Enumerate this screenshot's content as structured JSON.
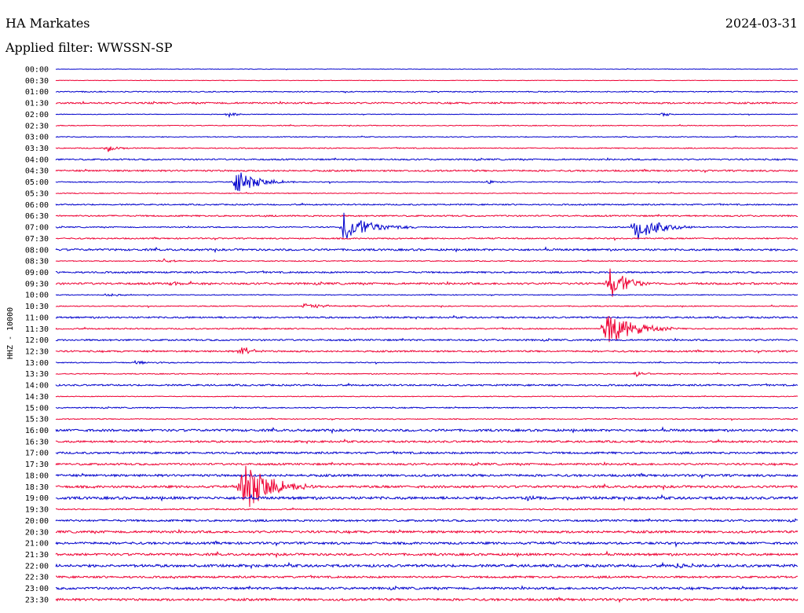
{
  "header": {
    "station": "HA Markates",
    "date": "2024-03-31",
    "filter": "Applied filter: WWSSN-SP"
  },
  "chart_data": {
    "type": "line",
    "ylabel": "HHZ - 10000",
    "row_labels": [
      "00:00",
      "00:30",
      "01:00",
      "01:30",
      "02:00",
      "02:30",
      "03:00",
      "03:30",
      "04:00",
      "04:30",
      "05:00",
      "05:30",
      "06:00",
      "06:30",
      "07:00",
      "07:30",
      "08:00",
      "08:30",
      "09:00",
      "09:30",
      "10:00",
      "10:30",
      "11:00",
      "11:30",
      "12:00",
      "12:30",
      "13:00",
      "13:30",
      "14:00",
      "14:30",
      "15:00",
      "15:30",
      "16:00",
      "16:30",
      "17:00",
      "17:30",
      "18:00",
      "18:30",
      "19:00",
      "19:30",
      "20:00",
      "20:30",
      "21:00",
      "21:30",
      "22:00",
      "22:30",
      "23:00",
      "23:30"
    ],
    "minutes_per_row": 30,
    "colors": [
      "#0000cc",
      "#ee0033"
    ],
    "noise_level": [
      0.3,
      0.3,
      0.6,
      1.0,
      0.4,
      0.5,
      0.5,
      0.6,
      0.9,
      1.0,
      0.6,
      0.5,
      0.8,
      0.9,
      0.7,
      0.8,
      1.2,
      0.6,
      1.0,
      1.2,
      0.5,
      0.6,
      1.0,
      0.8,
      1.0,
      1.0,
      0.6,
      0.6,
      1.0,
      0.5,
      0.7,
      0.6,
      1.4,
      1.2,
      1.2,
      1.2,
      1.4,
      1.4,
      1.6,
      0.8,
      1.2,
      1.4,
      1.4,
      1.4,
      1.6,
      1.2,
      1.4,
      1.4
    ],
    "events": [
      {
        "row": 4,
        "minute": 7.0,
        "amplitude": 4,
        "duration": 1.0
      },
      {
        "row": 4,
        "minute": 24.5,
        "amplitude": 3,
        "duration": 1.0
      },
      {
        "row": 7,
        "minute": 2.1,
        "amplitude": 5,
        "duration": 1.0
      },
      {
        "row": 10,
        "minute": 7.2,
        "amplitude": 17,
        "duration": 2.5
      },
      {
        "row": 10,
        "minute": 17.4,
        "amplitude": 3,
        "duration": 1.0
      },
      {
        "row": 14,
        "minute": 11.6,
        "amplitude": 19,
        "duration": 3.0
      },
      {
        "row": 14,
        "minute": 23.4,
        "amplitude": 19,
        "duration": 2.5
      },
      {
        "row": 17,
        "minute": 4.3,
        "amplitude": 4,
        "duration": 1.0
      },
      {
        "row": 19,
        "minute": 4.7,
        "amplitude": 3,
        "duration": 2.0
      },
      {
        "row": 19,
        "minute": 22.4,
        "amplitude": 22,
        "duration": 2.0
      },
      {
        "row": 20,
        "minute": 2.0,
        "amplitude": 2,
        "duration": 2.0
      },
      {
        "row": 21,
        "minute": 10.0,
        "amplitude": 3,
        "duration": 4.0
      },
      {
        "row": 23,
        "minute": 22.2,
        "amplitude": 24,
        "duration": 3.0
      },
      {
        "row": 25,
        "minute": 7.5,
        "amplitude": 9,
        "duration": 1.0
      },
      {
        "row": 26,
        "minute": 3.2,
        "amplitude": 2,
        "duration": 3.0
      },
      {
        "row": 27,
        "minute": 23.4,
        "amplitude": 5,
        "duration": 1.0
      },
      {
        "row": 37,
        "minute": 7.5,
        "amplitude": 38,
        "duration": 3.0
      },
      {
        "row": 38,
        "minute": 19.0,
        "amplitude": 6,
        "duration": 1.0
      },
      {
        "row": 44,
        "minute": 25.0,
        "amplitude": 3,
        "duration": 2.0
      }
    ]
  }
}
